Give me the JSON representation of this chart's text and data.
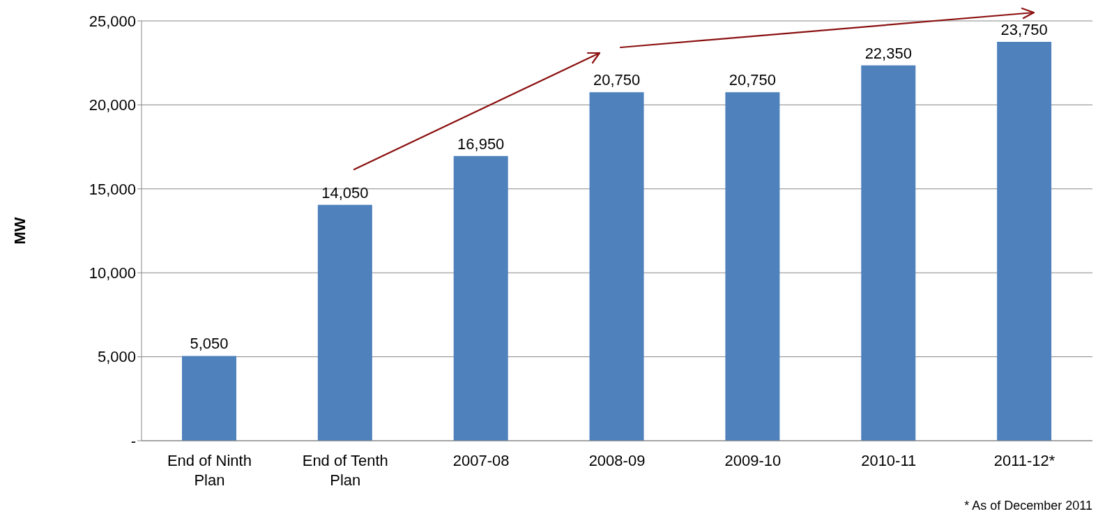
{
  "chart_data": {
    "type": "bar",
    "ylabel": "MW",
    "categories": [
      "End of Ninth Plan",
      "End of Tenth Plan",
      "2007-08",
      "2008-09",
      "2009-10",
      "2010-11",
      "2011-12*"
    ],
    "values": [
      5050,
      14050,
      16950,
      20750,
      20750,
      22350,
      23750
    ],
    "color": "#4f81bd",
    "ylim": [
      0,
      25000
    ],
    "yticks": [
      {
        "value": 0,
        "label": "-"
      },
      {
        "value": 5000,
        "label": "5,000"
      },
      {
        "value": 10000,
        "label": "10,000"
      },
      {
        "value": 15000,
        "label": "15,000"
      },
      {
        "value": 20000,
        "label": "20,000"
      },
      {
        "value": 25000,
        "label": "25,000"
      }
    ],
    "value_labels": [
      "5,050",
      "14,050",
      "16,950",
      "20,750",
      "20,750",
      "22,350",
      "23,750"
    ],
    "grid": "y",
    "annotations": [
      "* As of December 2011"
    ]
  }
}
